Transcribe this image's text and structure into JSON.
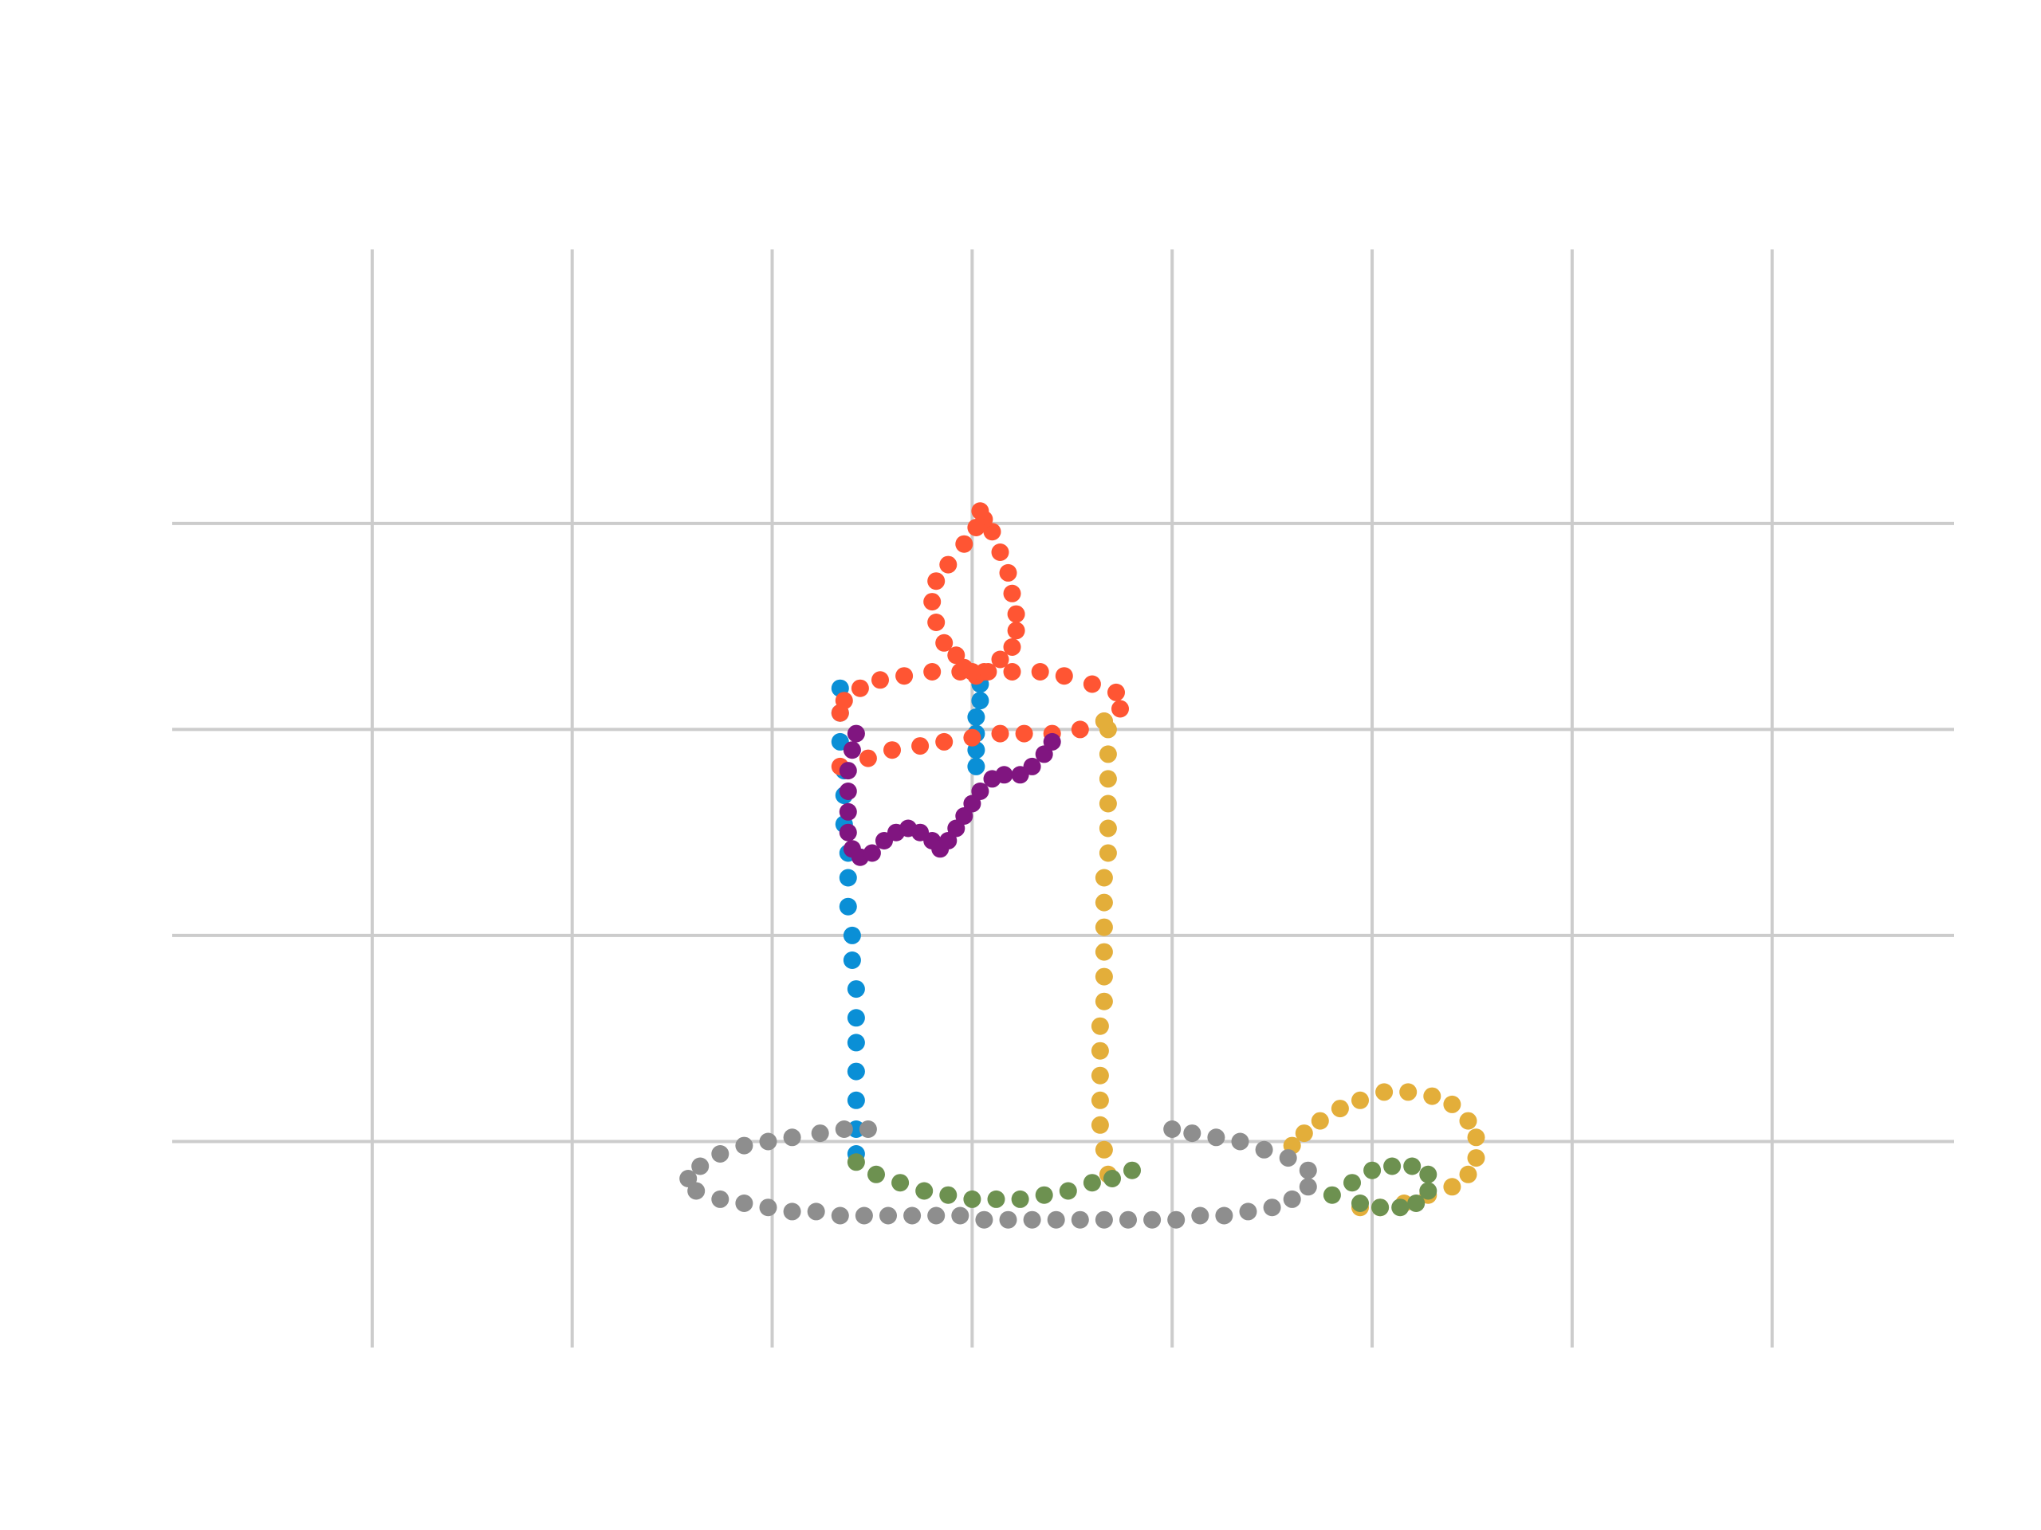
{
  "chart_data": {
    "type": "scatter",
    "title": "",
    "xlabel": "",
    "ylabel": "",
    "xlim": [
      0,
      4.455
    ],
    "ylim": [
      0,
      2.665
    ],
    "grid": true,
    "x_gridlines": [
      0.5,
      1.0,
      1.5,
      2.0,
      2.5,
      3.0,
      3.5,
      4.0
    ],
    "y_gridlines": [
      0.5,
      1.0,
      1.5,
      2.0
    ],
    "colors": {
      "grid": "#cccccc",
      "background": "#ffffff",
      "blue": "#0a8fd6",
      "orange": "#ff5533",
      "purple": "#801580",
      "yellow": "#e3ae3a",
      "green": "#6d9150",
      "gray": "#8e8e8e"
    },
    "series": [
      {
        "color": "#0a8fd6",
        "points": [
          [
            1.71,
            0.47
          ],
          [
            1.71,
            0.53
          ],
          [
            1.71,
            0.6
          ],
          [
            1.71,
            0.67
          ],
          [
            1.71,
            0.74
          ],
          [
            1.71,
            0.8
          ],
          [
            1.71,
            0.87
          ],
          [
            1.7,
            0.94
          ],
          [
            1.7,
            1.0
          ],
          [
            1.69,
            1.07
          ],
          [
            1.69,
            1.14
          ],
          [
            1.69,
            1.2
          ],
          [
            1.68,
            1.27
          ],
          [
            1.68,
            1.34
          ],
          [
            1.68,
            1.4
          ],
          [
            1.67,
            1.47
          ],
          [
            1.67,
            1.54
          ],
          [
            1.67,
            1.6
          ],
          [
            2.01,
            1.41
          ],
          [
            2.01,
            1.45
          ],
          [
            2.01,
            1.49
          ],
          [
            2.01,
            1.53
          ],
          [
            2.02,
            1.57
          ],
          [
            2.02,
            1.61
          ]
        ]
      },
      {
        "color": "#ff5533",
        "points": [
          [
            1.67,
            1.41
          ],
          [
            1.74,
            1.43
          ],
          [
            1.8,
            1.45
          ],
          [
            1.87,
            1.46
          ],
          [
            1.93,
            1.47
          ],
          [
            2.0,
            1.48
          ],
          [
            2.07,
            1.49
          ],
          [
            2.13,
            1.49
          ],
          [
            2.2,
            1.49
          ],
          [
            2.27,
            1.5
          ],
          [
            2.33,
            1.52
          ],
          [
            2.37,
            1.55
          ],
          [
            2.36,
            1.59
          ],
          [
            2.3,
            1.61
          ],
          [
            2.23,
            1.63
          ],
          [
            2.17,
            1.64
          ],
          [
            2.1,
            1.64
          ],
          [
            2.03,
            1.64
          ],
          [
            1.97,
            1.64
          ],
          [
            1.9,
            1.64
          ],
          [
            1.83,
            1.63
          ],
          [
            1.77,
            1.62
          ],
          [
            1.72,
            1.6
          ],
          [
            1.68,
            1.57
          ],
          [
            1.67,
            1.54
          ],
          [
            2.01,
            1.63
          ],
          [
            2.04,
            1.64
          ],
          [
            2.07,
            1.67
          ],
          [
            2.1,
            1.7
          ],
          [
            2.11,
            1.74
          ],
          [
            2.11,
            1.78
          ],
          [
            2.1,
            1.83
          ],
          [
            2.09,
            1.88
          ],
          [
            2.07,
            1.93
          ],
          [
            2.05,
            1.98
          ],
          [
            2.03,
            2.01
          ],
          [
            2.02,
            2.03
          ],
          [
            2.01,
            1.99
          ],
          [
            1.98,
            1.95
          ],
          [
            1.94,
            1.9
          ],
          [
            1.91,
            1.86
          ],
          [
            1.9,
            1.81
          ],
          [
            1.91,
            1.76
          ],
          [
            1.93,
            1.71
          ],
          [
            1.96,
            1.68
          ],
          [
            1.98,
            1.65
          ],
          [
            2.0,
            1.64
          ]
        ]
      },
      {
        "color": "#801580",
        "points": [
          [
            1.71,
            1.49
          ],
          [
            1.7,
            1.45
          ],
          [
            1.69,
            1.4
          ],
          [
            1.69,
            1.35
          ],
          [
            1.69,
            1.3
          ],
          [
            1.69,
            1.25
          ],
          [
            1.7,
            1.21
          ],
          [
            1.72,
            1.19
          ],
          [
            1.75,
            1.2
          ],
          [
            1.78,
            1.23
          ],
          [
            1.81,
            1.25
          ],
          [
            1.84,
            1.26
          ],
          [
            1.87,
            1.25
          ],
          [
            1.9,
            1.23
          ],
          [
            1.92,
            1.21
          ],
          [
            1.94,
            1.23
          ],
          [
            1.96,
            1.26
          ],
          [
            1.98,
            1.29
          ],
          [
            2.0,
            1.32
          ],
          [
            2.02,
            1.35
          ],
          [
            2.05,
            1.38
          ],
          [
            2.08,
            1.39
          ],
          [
            2.12,
            1.39
          ],
          [
            2.15,
            1.41
          ],
          [
            2.18,
            1.44
          ],
          [
            2.2,
            1.47
          ]
        ]
      },
      {
        "color": "#e3ae3a",
        "points": [
          [
            2.34,
            0.42
          ],
          [
            2.33,
            0.48
          ],
          [
            2.32,
            0.54
          ],
          [
            2.32,
            0.6
          ],
          [
            2.32,
            0.66
          ],
          [
            2.32,
            0.72
          ],
          [
            2.32,
            0.78
          ],
          [
            2.33,
            0.84
          ],
          [
            2.33,
            0.9
          ],
          [
            2.33,
            0.96
          ],
          [
            2.33,
            1.02
          ],
          [
            2.33,
            1.08
          ],
          [
            2.33,
            1.14
          ],
          [
            2.34,
            1.2
          ],
          [
            2.34,
            1.26
          ],
          [
            2.34,
            1.32
          ],
          [
            2.34,
            1.38
          ],
          [
            2.34,
            1.44
          ],
          [
            2.34,
            1.5
          ],
          [
            2.33,
            1.52
          ],
          [
            2.97,
            0.34
          ],
          [
            3.02,
            0.34
          ],
          [
            3.08,
            0.35
          ],
          [
            3.14,
            0.37
          ],
          [
            3.2,
            0.39
          ],
          [
            3.24,
            0.42
          ],
          [
            3.26,
            0.46
          ],
          [
            3.26,
            0.51
          ],
          [
            3.24,
            0.55
          ],
          [
            3.2,
            0.59
          ],
          [
            3.15,
            0.61
          ],
          [
            3.09,
            0.62
          ],
          [
            3.03,
            0.62
          ],
          [
            2.97,
            0.6
          ],
          [
            2.92,
            0.58
          ],
          [
            2.87,
            0.55
          ],
          [
            2.83,
            0.52
          ],
          [
            2.8,
            0.49
          ]
        ]
      },
      {
        "color": "#6d9150",
        "points": [
          [
            1.71,
            0.45
          ],
          [
            1.76,
            0.42
          ],
          [
            1.82,
            0.4
          ],
          [
            1.88,
            0.38
          ],
          [
            1.94,
            0.37
          ],
          [
            2.0,
            0.36
          ],
          [
            2.06,
            0.36
          ],
          [
            2.12,
            0.36
          ],
          [
            2.18,
            0.37
          ],
          [
            2.24,
            0.38
          ],
          [
            2.3,
            0.4
          ],
          [
            2.35,
            0.41
          ],
          [
            2.4,
            0.43
          ],
          [
            2.9,
            0.37
          ],
          [
            2.95,
            0.4
          ],
          [
            3.0,
            0.43
          ],
          [
            3.05,
            0.44
          ],
          [
            3.1,
            0.44
          ],
          [
            3.14,
            0.42
          ],
          [
            3.14,
            0.38
          ],
          [
            3.11,
            0.35
          ],
          [
            3.07,
            0.34
          ],
          [
            3.02,
            0.34
          ],
          [
            2.97,
            0.35
          ]
        ]
      },
      {
        "color": "#8e8e8e",
        "points": [
          [
            1.74,
            0.53
          ],
          [
            1.68,
            0.53
          ],
          [
            1.62,
            0.52
          ],
          [
            1.55,
            0.51
          ],
          [
            1.49,
            0.5
          ],
          [
            1.43,
            0.49
          ],
          [
            1.37,
            0.47
          ],
          [
            1.32,
            0.44
          ],
          [
            1.29,
            0.41
          ],
          [
            1.31,
            0.38
          ],
          [
            1.37,
            0.36
          ],
          [
            1.43,
            0.35
          ],
          [
            1.49,
            0.34
          ],
          [
            1.55,
            0.33
          ],
          [
            1.61,
            0.33
          ],
          [
            1.67,
            0.32
          ],
          [
            1.73,
            0.32
          ],
          [
            1.79,
            0.32
          ],
          [
            1.85,
            0.32
          ],
          [
            1.91,
            0.32
          ],
          [
            1.97,
            0.32
          ],
          [
            2.03,
            0.31
          ],
          [
            2.09,
            0.31
          ],
          [
            2.15,
            0.31
          ],
          [
            2.21,
            0.31
          ],
          [
            2.27,
            0.31
          ],
          [
            2.33,
            0.31
          ],
          [
            2.39,
            0.31
          ],
          [
            2.45,
            0.31
          ],
          [
            2.51,
            0.31
          ],
          [
            2.57,
            0.32
          ],
          [
            2.63,
            0.32
          ],
          [
            2.69,
            0.33
          ],
          [
            2.75,
            0.34
          ],
          [
            2.8,
            0.36
          ],
          [
            2.84,
            0.39
          ],
          [
            2.84,
            0.43
          ],
          [
            2.79,
            0.46
          ],
          [
            2.73,
            0.48
          ],
          [
            2.67,
            0.5
          ],
          [
            2.61,
            0.51
          ],
          [
            2.55,
            0.52
          ],
          [
            2.5,
            0.53
          ]
        ]
      }
    ]
  }
}
